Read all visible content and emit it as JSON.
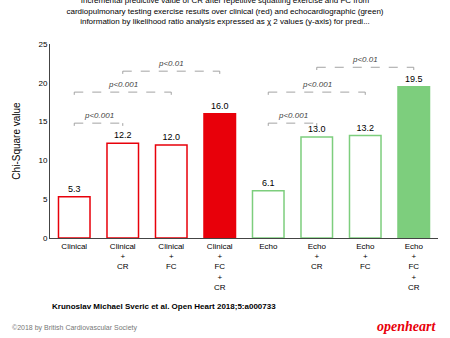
{
  "chart_data": {
    "type": "bar",
    "title": "Incremental predictive value of CR after repetitive squatting exercise and FC from\ncardiopulmonary testing exercise results over clinical (red) and echocardiographic (green)\ninformation by likelihood ratio analysis expressed as χ 2 values (y-axis) for predi...",
    "categories": [
      "Clinical",
      "Clinical\n+\nCR",
      "Clinical\n+\nFC",
      "Clinical\n+\nFC\n+\nCR",
      "Echo",
      "Echo\n+\nCR",
      "Echo\n+\nFC",
      "Echo\n+\nFC\n+\nCR"
    ],
    "values": [
      5.3,
      12.2,
      12.0,
      16.0,
      6.1,
      13.0,
      13.2,
      19.5
    ],
    "value_labels": [
      "5.3",
      "12.2",
      "12.0",
      "16.0",
      "6.1",
      "13.0",
      "13.2",
      "19.5"
    ],
    "data_labels": true,
    "colors": [
      "white",
      "white",
      "white",
      "#e8000a",
      "white",
      "white",
      "white",
      "#7dce7d"
    ],
    "edge_colors": [
      "#e8000a",
      "#e8000a",
      "#e8000a",
      "#e8000a",
      "#7dce7d",
      "#7dce7d",
      "#7dce7d",
      "#7dce7d"
    ],
    "ylabel": "Chi-Square value",
    "ylim": [
      0,
      25
    ],
    "yticks": [
      0,
      5,
      10,
      15,
      20,
      25
    ],
    "grid": false,
    "brackets": [
      {
        "from": "Clinical",
        "to": "Clinical\n+\nCR",
        "y": 14.8,
        "label": "p<0.001",
        "color": "#999999"
      },
      {
        "from": "Clinical",
        "to": "Clinical\n+\nFC",
        "y": 18.8,
        "label": "p<0.001",
        "color": "#999999"
      },
      {
        "from": "Clinical\n+\nCR",
        "to": "Clinical\n+\nFC\n+\nCR",
        "y": 21.5,
        "label": "p<0.01",
        "color": "#999999"
      },
      {
        "from": "Echo",
        "to": "Echo\n+\nCR",
        "y": 14.8,
        "label": "p<0.001",
        "color": "#999999"
      },
      {
        "from": "Echo",
        "to": "Echo\n+\nFC",
        "y": 18.8,
        "label": "p<0.001",
        "color": "#999999"
      },
      {
        "from": "Echo\n+\nCR",
        "to": "Echo\n+\nFC\n+\nCR",
        "y": 22.0,
        "label": "p<0.01",
        "color": "#999999"
      }
    ],
    "annotations": [
      {
        "text": "Krunoslav Michael Sveric et al. Open Heart 2018;5:a000733"
      },
      {
        "text": "©2018 by British Cardiovascular Society",
        "color": "#777777"
      },
      {
        "text": "openheart",
        "color": "#e8000a"
      }
    ]
  }
}
